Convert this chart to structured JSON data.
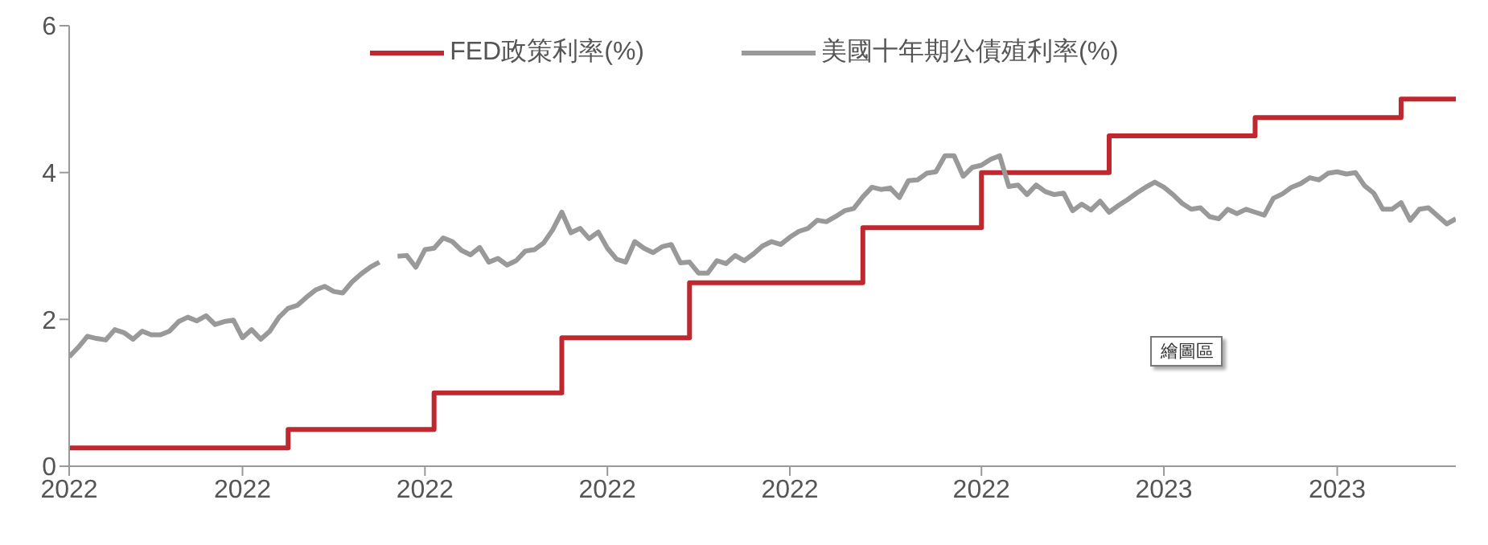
{
  "chart_data": {
    "type": "line",
    "categories": [
      "2022",
      null,
      null,
      null,
      null,
      null,
      null,
      null,
      null,
      null,
      null,
      null,
      null,
      null,
      null,
      null,
      null,
      null,
      null,
      "2022",
      null,
      null,
      null,
      null,
      null,
      null,
      null,
      null,
      null,
      null,
      null,
      null,
      null,
      null,
      null,
      null,
      null,
      null,
      null,
      "2022",
      null,
      null,
      null,
      null,
      null,
      null,
      null,
      null,
      null,
      null,
      null,
      null,
      null,
      null,
      null,
      null,
      null,
      null,
      null,
      "2022",
      null,
      null,
      null,
      null,
      null,
      null,
      null,
      null,
      null,
      null,
      null,
      null,
      null,
      null,
      null,
      null,
      null,
      null,
      null,
      "2022",
      null,
      null,
      null,
      null,
      null,
      null,
      null,
      null,
      null,
      null,
      null,
      null,
      null,
      null,
      null,
      null,
      null,
      null,
      null,
      null,
      "2022",
      null,
      null,
      null,
      null,
      null,
      null,
      null,
      null,
      null,
      null,
      null,
      null,
      null,
      null,
      null,
      null,
      null,
      null,
      null,
      "2023",
      null,
      null,
      null,
      null,
      null,
      null,
      null,
      null,
      null,
      null,
      null,
      null,
      null,
      null,
      null,
      null,
      null,
      null,
      "2023",
      null,
      null,
      null,
      null,
      null,
      null,
      null,
      null,
      null,
      null,
      null,
      null,
      null
    ],
    "series": [
      {
        "name": "FED政策利率(%)",
        "type": "step",
        "color": "#c0282f",
        "values": [
          0.25,
          0.25,
          0.25,
          0.25,
          0.25,
          0.25,
          0.25,
          0.25,
          0.25,
          0.25,
          0.25,
          0.25,
          0.25,
          0.25,
          0.25,
          0.25,
          0.25,
          0.25,
          0.25,
          0.25,
          0.25,
          0.25,
          0.25,
          0.25,
          0.5,
          0.5,
          0.5,
          0.5,
          0.5,
          0.5,
          0.5,
          0.5,
          0.5,
          0.5,
          0.5,
          0.5,
          0.5,
          0.5,
          0.5,
          0.5,
          1.0,
          1.0,
          1.0,
          1.0,
          1.0,
          1.0,
          1.0,
          1.0,
          1.0,
          1.0,
          1.0,
          1.0,
          1.0,
          1.0,
          1.75,
          1.75,
          1.75,
          1.75,
          1.75,
          1.75,
          1.75,
          1.75,
          1.75,
          1.75,
          1.75,
          1.75,
          1.75,
          1.75,
          2.5,
          2.5,
          2.5,
          2.5,
          2.5,
          2.5,
          2.5,
          2.5,
          2.5,
          2.5,
          2.5,
          2.5,
          2.5,
          2.5,
          2.5,
          2.5,
          2.5,
          2.5,
          2.5,
          3.25,
          3.25,
          3.25,
          3.25,
          3.25,
          3.25,
          3.25,
          3.25,
          3.25,
          3.25,
          3.25,
          3.25,
          3.25,
          4.0,
          4.0,
          4.0,
          4.0,
          4.0,
          4.0,
          4.0,
          4.0,
          4.0,
          4.0,
          4.0,
          4.0,
          4.0,
          4.0,
          4.5,
          4.5,
          4.5,
          4.5,
          4.5,
          4.5,
          4.5,
          4.5,
          4.5,
          4.5,
          4.5,
          4.5,
          4.5,
          4.5,
          4.5,
          4.5,
          4.75,
          4.75,
          4.75,
          4.75,
          4.75,
          4.75,
          4.75,
          4.75,
          4.75,
          4.75,
          4.75,
          4.75,
          4.75,
          4.75,
          4.75,
          4.75,
          5.0,
          5.0,
          5.0,
          5.0,
          5.0,
          5.0,
          5.0
        ]
      },
      {
        "name": "美國十年期公債殖利率(%)",
        "color": "#999999",
        "values": [
          1.49,
          1.62,
          1.77,
          1.74,
          1.72,
          1.86,
          1.82,
          1.73,
          1.84,
          1.79,
          1.79,
          1.84,
          1.97,
          2.03,
          1.98,
          2.05,
          1.93,
          1.97,
          1.99,
          1.75,
          1.86,
          1.73,
          1.84,
          2.03,
          2.15,
          2.19,
          2.3,
          2.4,
          2.45,
          2.38,
          2.36,
          2.51,
          2.62,
          2.71,
          2.78,
          null,
          2.86,
          2.87,
          2.71,
          2.95,
          2.97,
          3.11,
          3.06,
          2.94,
          2.88,
          2.98,
          2.78,
          2.83,
          2.74,
          2.8,
          2.93,
          2.95,
          3.04,
          3.22,
          3.46,
          3.18,
          3.24,
          3.1,
          3.19,
          2.97,
          2.82,
          2.78,
          3.06,
          2.97,
          2.91,
          2.99,
          3.02,
          2.77,
          2.78,
          2.63,
          2.63,
          2.8,
          2.76,
          2.87,
          2.8,
          2.89,
          3.0,
          3.06,
          3.02,
          3.12,
          3.2,
          3.24,
          3.35,
          3.33,
          3.4,
          3.48,
          3.51,
          3.67,
          3.8,
          3.77,
          3.79,
          3.66,
          3.89,
          3.9,
          3.99,
          4.01,
          4.23,
          4.23,
          3.95,
          4.07,
          4.1,
          4.18,
          4.23,
          3.81,
          3.83,
          3.7,
          3.83,
          3.74,
          3.7,
          3.72,
          3.48,
          3.57,
          3.49,
          3.61,
          3.46,
          3.55,
          3.63,
          3.72,
          3.8,
          3.87,
          3.8,
          3.7,
          3.58,
          3.5,
          3.52,
          3.4,
          3.37,
          3.5,
          3.44,
          3.5,
          3.46,
          3.42,
          3.65,
          3.71,
          3.8,
          3.85,
          3.93,
          3.9,
          3.99,
          4.01,
          3.98,
          4.0,
          3.82,
          3.72,
          3.5,
          3.5,
          3.59,
          3.35,
          3.5,
          3.52,
          3.41,
          3.3,
          3.37
        ]
      }
    ],
    "ylim": [
      0,
      6
    ],
    "yticks": [
      0,
      2,
      4,
      6
    ],
    "grid": false,
    "legend": "top",
    "marker": "none",
    "annotations": [
      "繪圖區"
    ]
  }
}
